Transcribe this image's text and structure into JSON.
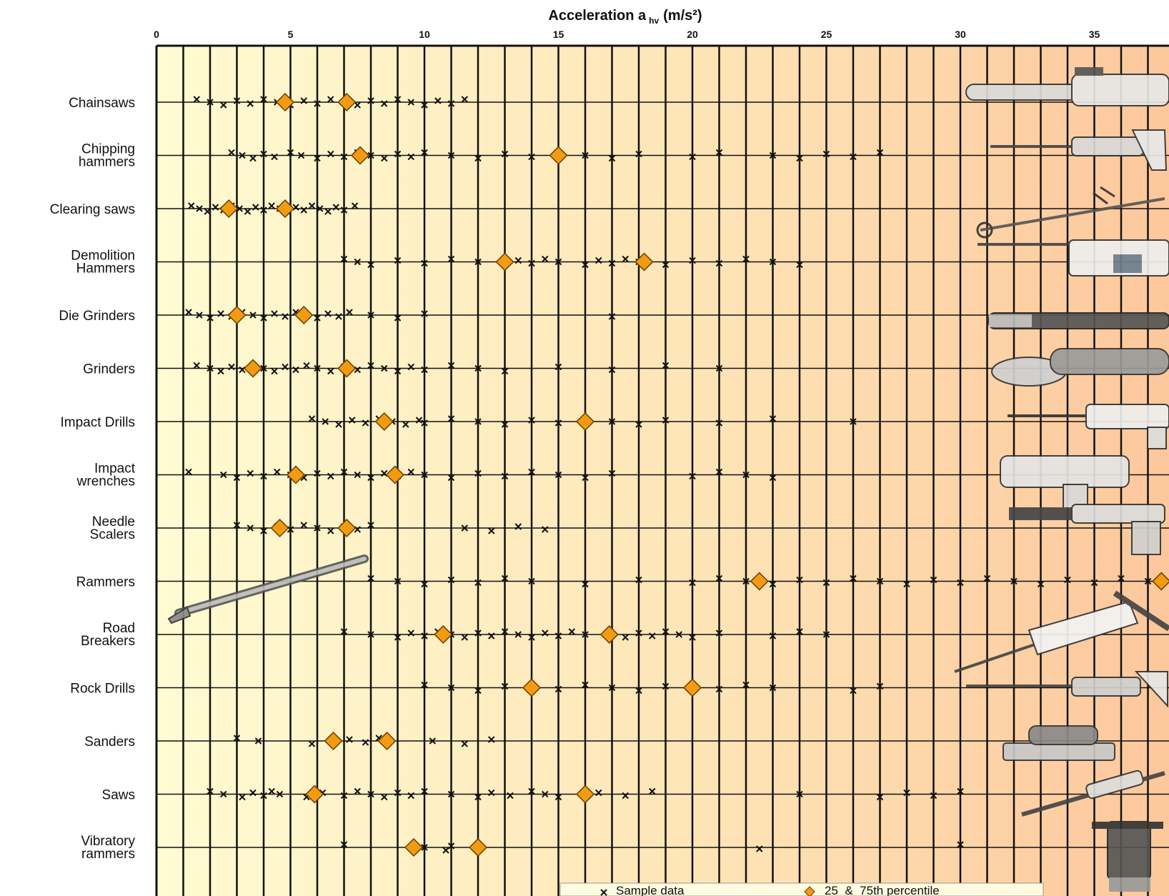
{
  "chart_data": {
    "type": "scatter",
    "title": "",
    "xlabel": "Acceleration a hv (m/s²)",
    "xlabel_main": "Acceleration a",
    "xlabel_sub": "hv",
    "xlabel_unit": "(m/s²)",
    "ylabel": "",
    "xlim": [
      0,
      38
    ],
    "x_ticks": [
      0,
      5,
      10,
      15,
      20,
      25,
      30,
      35
    ],
    "x_tick_labels": [
      "0",
      "5",
      "10",
      "15",
      "20",
      "25",
      "30",
      "35"
    ],
    "minor_grid_step": 1,
    "grid": true,
    "background_gradient": [
      "#fffbd2",
      "#fde4b6",
      "#fdc79c"
    ],
    "marker_colors": {
      "sample": "#111111",
      "percentile": "#f29a12",
      "percentile_edge": "#6a3a00"
    },
    "categories": [
      "Chainsaws",
      "Chipping hammers",
      "Clearing saws",
      "Demolition Hammers",
      "Die Grinders",
      "Grinders",
      "Impact Drills",
      "Impact wrenches",
      "Needle Scalers",
      "Rammers",
      "Road Breakers",
      "Rock Drills",
      "Sanders",
      "Saws",
      "Vibratory rammers"
    ],
    "category_lines": [
      [
        "Chainsaws"
      ],
      [
        "Chipping",
        "hammers"
      ],
      [
        "Clearing saws"
      ],
      [
        "Demolition",
        "Hammers"
      ],
      [
        "Die Grinders"
      ],
      [
        "Grinders"
      ],
      [
        "Impact Drills"
      ],
      [
        "Impact",
        "wrenches"
      ],
      [
        "Needle",
        "Scalers"
      ],
      [
        "Rammers"
      ],
      [
        "Road",
        "Breakers"
      ],
      [
        "Rock Drills"
      ],
      [
        "Sanders"
      ],
      [
        "Saws"
      ],
      [
        "Vibratory",
        "rammers"
      ]
    ],
    "series": [
      {
        "name": "25_&_75th percentile",
        "marker": "diamond",
        "values": [
          [
            4.8,
            7.1
          ],
          [
            7.6,
            15.0
          ],
          [
            2.7,
            4.8
          ],
          [
            13.0,
            18.2
          ],
          [
            3.0,
            5.5
          ],
          [
            3.6,
            7.1
          ],
          [
            8.5,
            16.0
          ],
          [
            5.2,
            8.9
          ],
          [
            4.6,
            7.1
          ],
          [
            22.5,
            37.5
          ],
          [
            10.7,
            16.9
          ],
          [
            14.0,
            20.0
          ],
          [
            6.6,
            8.6
          ],
          [
            5.9,
            16.0
          ],
          [
            9.6,
            12.0
          ]
        ]
      },
      {
        "name": "Sample data",
        "marker": "x",
        "values": [
          [
            1.5,
            2.0,
            2.5,
            3.0,
            3.5,
            4.0,
            4.5,
            5.0,
            5.5,
            6.0,
            6.5,
            7.0,
            7.5,
            8.0,
            8.5,
            9.0,
            9.5,
            10.0,
            10.5,
            11.0,
            11.5
          ],
          [
            2.8,
            3.2,
            3.6,
            4.0,
            4.4,
            5.0,
            5.4,
            6.0,
            6.5,
            7.0,
            7.5,
            8.0,
            8.5,
            9.0,
            9.5,
            10.0,
            11.0,
            12.0,
            13.0,
            14.0,
            15.0,
            16.0,
            17.0,
            18.0,
            20.0,
            21.0,
            23.0,
            24.0,
            25.0,
            26.0,
            27.0
          ],
          [
            1.3,
            1.6,
            1.9,
            2.2,
            2.5,
            2.8,
            3.1,
            3.4,
            3.7,
            4.0,
            4.3,
            4.6,
            4.9,
            5.2,
            5.5,
            5.8,
            6.1,
            6.4,
            6.7,
            7.0,
            7.4
          ],
          [
            7.0,
            7.5,
            8.0,
            9.0,
            10.0,
            11.0,
            12.0,
            13.0,
            13.5,
            14.0,
            14.5,
            15.0,
            16.0,
            16.5,
            17.0,
            17.5,
            18.0,
            19.0,
            20.0,
            21.0,
            22.0,
            23.0,
            24.0
          ],
          [
            1.2,
            1.6,
            2.0,
            2.4,
            2.8,
            3.2,
            3.6,
            4.0,
            4.4,
            4.8,
            5.2,
            5.6,
            6.0,
            6.4,
            6.8,
            7.2,
            8.0,
            9.0,
            10.0,
            17.0
          ],
          [
            1.5,
            2.0,
            2.4,
            2.8,
            3.2,
            3.6,
            4.0,
            4.4,
            4.8,
            5.2,
            5.6,
            6.0,
            6.5,
            7.0,
            7.5,
            8.0,
            8.5,
            9.0,
            9.5,
            10.0,
            11.0,
            12.0,
            13.0,
            15.0,
            17.0,
            19.0,
            21.0
          ],
          [
            5.8,
            6.3,
            6.8,
            7.3,
            7.8,
            8.3,
            8.8,
            9.3,
            9.8,
            10.0,
            11.0,
            12.0,
            13.0,
            14.0,
            15.0,
            16.0,
            17.0,
            18.0,
            19.0,
            21.0,
            23.0,
            26.0
          ],
          [
            1.2,
            2.5,
            3.0,
            3.5,
            4.0,
            4.5,
            5.0,
            5.5,
            6.0,
            6.5,
            7.0,
            7.5,
            8.0,
            8.5,
            9.0,
            9.5,
            10.0,
            11.0,
            12.0,
            13.0,
            14.0,
            15.0,
            16.0,
            17.0,
            20.0,
            21.0,
            22.0,
            23.0
          ],
          [
            3.0,
            3.5,
            4.0,
            4.5,
            5.0,
            5.5,
            6.0,
            6.5,
            7.0,
            7.5,
            8.0,
            11.5,
            12.5,
            13.5,
            14.5
          ],
          [
            8.0,
            9.0,
            10.0,
            11.0,
            12.0,
            13.0,
            14.0,
            16.0,
            18.0,
            20.0,
            21.0,
            22.0,
            23.0,
            24.0,
            25.0,
            26.0,
            27.0,
            28.0,
            29.0,
            30.0,
            31.0,
            32.0,
            33.0,
            34.0,
            35.0,
            36.0,
            37.0
          ],
          [
            7.0,
            8.0,
            9.0,
            9.5,
            10.0,
            10.5,
            11.0,
            11.5,
            12.0,
            12.5,
            13.0,
            13.5,
            14.0,
            14.5,
            15.0,
            15.5,
            16.0,
            17.5,
            18.0,
            18.5,
            19.0,
            19.5,
            20.0,
            21.0,
            23.0,
            24.0,
            25.0
          ],
          [
            10.0,
            11.0,
            12.0,
            13.0,
            15.0,
            16.0,
            17.0,
            18.0,
            19.0,
            21.0,
            22.0,
            23.0,
            26.0,
            27.0
          ],
          [
            3.0,
            3.8,
            5.8,
            7.2,
            7.8,
            8.3,
            10.3,
            11.5,
            12.5
          ],
          [
            2.0,
            2.5,
            3.2,
            3.6,
            4.0,
            4.3,
            4.6,
            5.6,
            6.2,
            7.0,
            7.5,
            8.0,
            8.5,
            9.0,
            9.5,
            10.0,
            11.0,
            12.0,
            12.5,
            13.2,
            14.0,
            14.5,
            15.0,
            16.5,
            17.5,
            18.5,
            24.0,
            27.0,
            28.0,
            29.0,
            30.0
          ],
          [
            7.0,
            10.0,
            10.8,
            11.0,
            22.5,
            30.0
          ]
        ]
      }
    ],
    "legend": {
      "position": "bottom-right",
      "items": [
        "Sample data",
        "25_&_75th percentile"
      ]
    }
  }
}
